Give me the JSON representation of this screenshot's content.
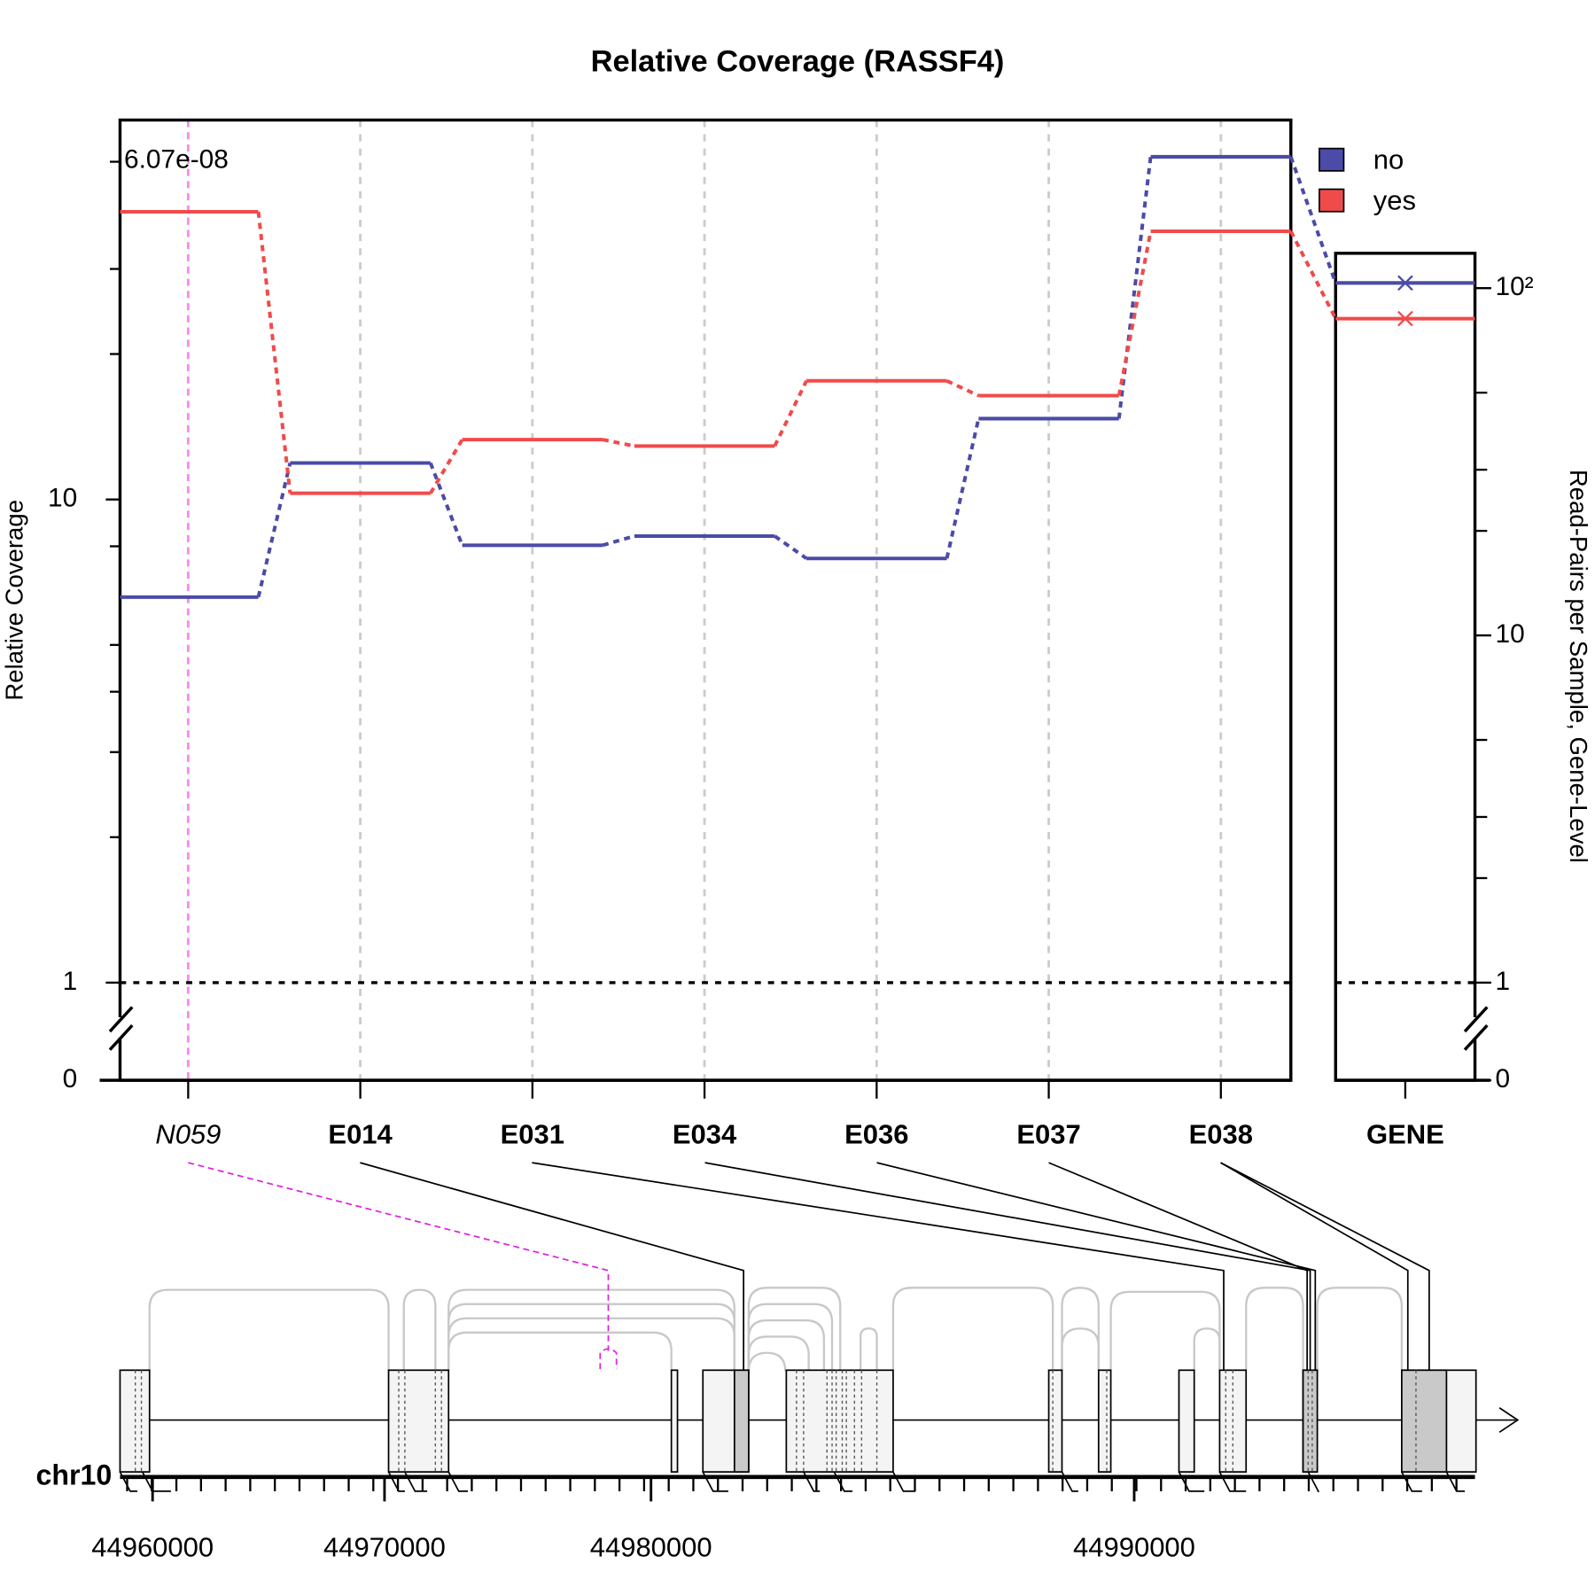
{
  "chart_data": {
    "type": "line",
    "title": "Relative Coverage (RASSF4)",
    "y_label": "Relative Coverage",
    "y2_label": "Read-Pairs per Sample, Gene-Level",
    "categories": [
      "N059",
      "E014",
      "E031",
      "E034",
      "E036",
      "E037",
      "E038"
    ],
    "gene_category": "GENE",
    "series": [
      {
        "name": "no",
        "color": "#4B4BA8",
        "values": [
          6.28,
          11.9,
          8.04,
          8.4,
          7.55,
          14.7,
          51.2
        ],
        "gene_value": 103.5,
        "gene_axis": "y2"
      },
      {
        "name": "yes",
        "color": "#F04B4B",
        "values": [
          39.4,
          10.3,
          13.3,
          12.9,
          17.6,
          16.4,
          35.9
        ],
        "gene_value": 81.7,
        "gene_axis": "y2"
      }
    ],
    "log_y": true,
    "ylim": [
      1,
      61
    ],
    "yticks": [
      0,
      1,
      10
    ],
    "yminorticks": [
      2,
      3,
      4,
      5,
      8,
      20,
      30,
      50
    ],
    "y2lim": [
      1,
      126
    ],
    "y2ticks": [
      0,
      1,
      10,
      {
        "value": 100,
        "label": "10²"
      }
    ],
    "y2minorticks": [
      2,
      3,
      5,
      20,
      30,
      50
    ],
    "axis_break": true,
    "reference_line": 1,
    "annotation": "6.07e-08",
    "highlight_color": "#F58CF0",
    "grid": true,
    "legend": "top-right",
    "genome": {
      "chromosome": "chr10",
      "ticks": [
        44960000,
        44970000,
        44980000,
        44990000
      ]
    }
  }
}
